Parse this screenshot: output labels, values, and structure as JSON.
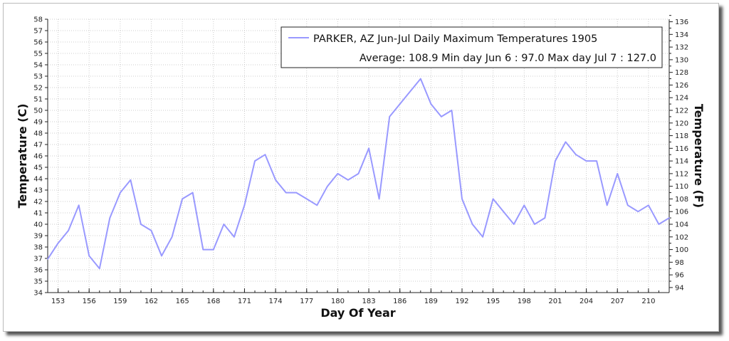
{
  "chart_data": {
    "type": "line",
    "title": "PARKER, AZ  Jun-Jul  Daily Maximum Temperatures 1905",
    "subtitle": "Average: 108.9  Min day Jun 6 : 97.0  Max day Jul 7 : 127.0",
    "xlabel": "Day Of Year",
    "ylabel": "Temperature (C)",
    "ylabel_right": "Temperature (F)",
    "xlim": [
      152,
      212
    ],
    "ylim": [
      34,
      58
    ],
    "ylim_right": [
      94,
      136
    ],
    "x_ticks": [
      153,
      156,
      159,
      162,
      165,
      168,
      171,
      174,
      177,
      180,
      183,
      186,
      189,
      192,
      195,
      198,
      201,
      204,
      207,
      210
    ],
    "y_ticks": [
      34,
      35,
      36,
      37,
      38,
      39,
      40,
      41,
      42,
      43,
      44,
      45,
      46,
      47,
      48,
      49,
      50,
      51,
      52,
      53,
      54,
      55,
      56,
      57,
      58
    ],
    "y_ticks_right": [
      94,
      96,
      98,
      100,
      102,
      104,
      106,
      108,
      110,
      112,
      114,
      116,
      118,
      120,
      122,
      124,
      126,
      128,
      130,
      132,
      134,
      136
    ],
    "grid": true,
    "legend_placement": "top-right",
    "line_color": "#9999ff",
    "series": [
      {
        "name": "PARKER, AZ  Jun-Jul  Daily Maximum Temperatures 1905",
        "unit": "F",
        "x": [
          152,
          153,
          154,
          155,
          156,
          157,
          158,
          159,
          160,
          161,
          162,
          163,
          164,
          165,
          166,
          167,
          168,
          169,
          170,
          171,
          172,
          173,
          174,
          175,
          176,
          177,
          178,
          179,
          180,
          181,
          182,
          183,
          184,
          185,
          186,
          187,
          188,
          189,
          190,
          191,
          192,
          193,
          194,
          195,
          196,
          197,
          198,
          199,
          200,
          201,
          202,
          203,
          204,
          205,
          206,
          207,
          208,
          209,
          210,
          211,
          212
        ],
        "values": [
          98.5,
          101,
          103,
          107,
          99,
          97,
          105,
          109,
          111,
          104,
          103,
          99,
          102,
          108,
          109,
          100,
          100,
          104,
          102,
          107,
          114,
          115,
          111,
          109,
          109,
          108,
          107,
          110,
          112,
          111,
          112,
          116,
          108,
          121,
          123,
          125,
          127,
          123,
          121,
          122,
          108,
          104,
          102,
          108,
          106,
          104,
          107,
          104,
          105,
          114,
          117,
          115,
          114,
          114,
          107,
          112,
          107,
          106,
          107,
          104,
          105
        ]
      }
    ]
  }
}
